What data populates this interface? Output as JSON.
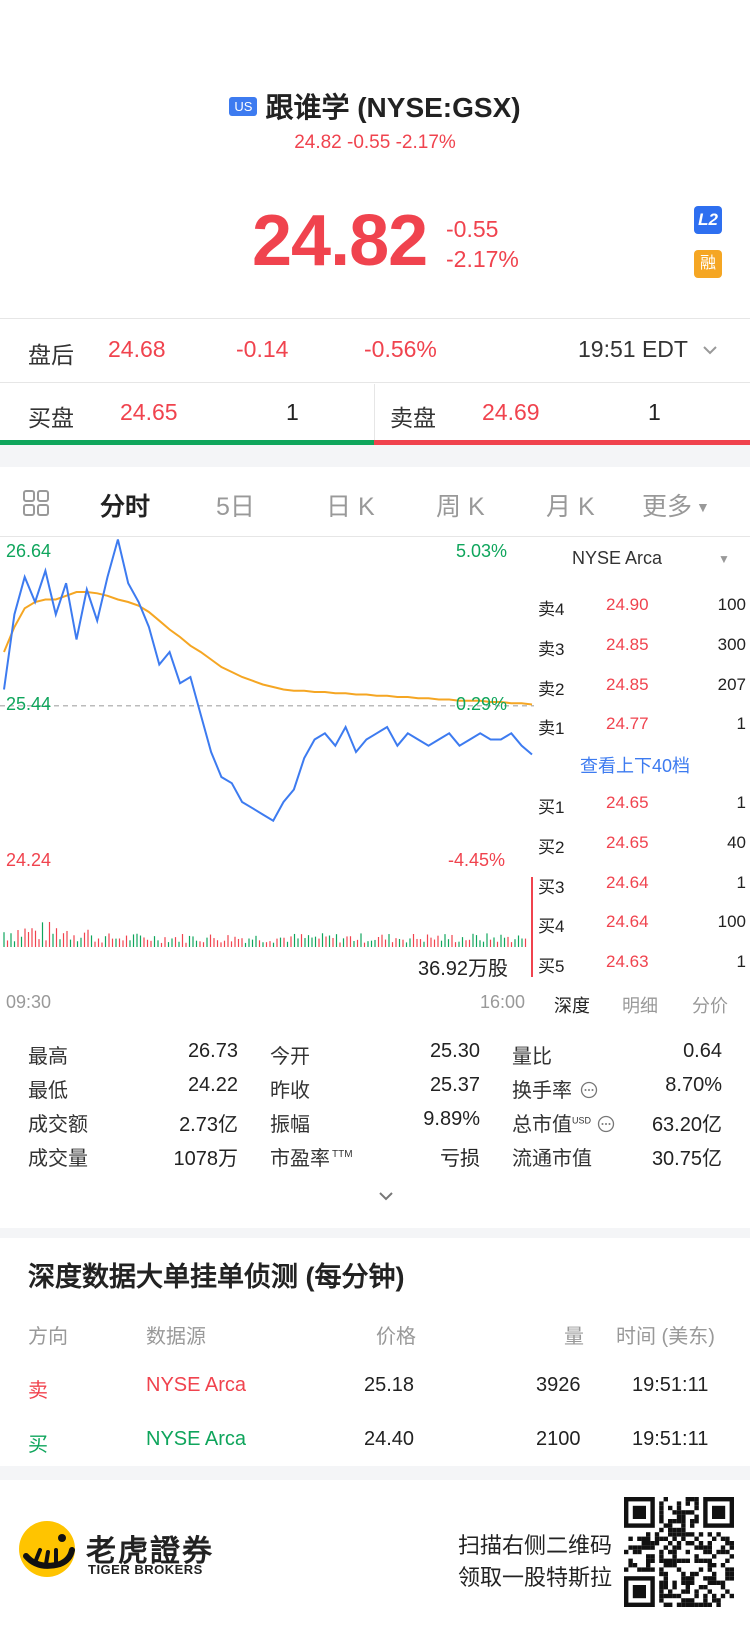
{
  "header": {
    "market_badge": "US",
    "title": "跟谁学 (NYSE:GSX)",
    "subtitle": "24.82 -0.55 -2.17%",
    "price": "24.82",
    "change": "-0.55",
    "change_pct": "-2.17%",
    "l2_badge": "L2",
    "margin_badge": "融"
  },
  "after_hours": {
    "label": "盘后",
    "price": "24.68",
    "change": "-0.14",
    "change_pct": "-0.56%",
    "time": "19:51 EDT"
  },
  "bid_ask": {
    "bid_label": "买盘",
    "bid_price": "24.65",
    "bid_qty": "1",
    "ask_label": "卖盘",
    "ask_price": "24.69",
    "ask_qty": "1"
  },
  "tabs": [
    "分时",
    "5日",
    "日 K",
    "周 K",
    "月 K",
    "更多"
  ],
  "chart": {
    "y_high": "26.64",
    "y_mid": "25.44",
    "y_low": "24.24",
    "pct_high": "5.03%",
    "pct_mid": "0.29%",
    "pct_low": "-4.45%",
    "volume_label": "36.92万股",
    "time_start": "09:30",
    "time_end": "16:00"
  },
  "chart_data": {
    "type": "line",
    "title": "",
    "xlabel": "",
    "ylabel": "",
    "ylim": [
      24.24,
      26.64
    ],
    "x_range": [
      "09:30",
      "16:00"
    ],
    "prev_close": 25.37,
    "series": [
      {
        "color": "#3d7bf0",
        "values": [
          25.5,
          26.1,
          26.4,
          26.2,
          26.45,
          26.1,
          26.35,
          25.9,
          26.3,
          26.05,
          26.4,
          26.7,
          26.35,
          26.2,
          26.0,
          25.7,
          25.8,
          25.55,
          25.6,
          25.3,
          25.0,
          24.8,
          24.75,
          24.6,
          24.55,
          24.5,
          24.45,
          24.6,
          24.7,
          24.95,
          25.1,
          25.15,
          25.05,
          25.2,
          25.0,
          25.1,
          25.15,
          25.2,
          25.05,
          25.15,
          25.1,
          25.05,
          25.1,
          25.15,
          25.05,
          25.1,
          25.15,
          25.1,
          25.1,
          25.15,
          25.05,
          24.98
        ]
      },
      {
        "color": "#f5a623",
        "values": [
          25.8,
          26.0,
          26.15,
          26.2,
          26.22,
          26.22,
          26.25,
          26.28,
          26.28,
          26.27,
          26.25,
          26.22,
          26.2,
          26.17,
          26.12,
          26.05,
          25.98,
          25.92,
          25.85,
          25.8,
          25.74,
          25.68,
          25.64,
          25.6,
          25.57,
          25.54,
          25.52,
          25.5,
          25.49,
          25.49,
          25.48,
          25.48,
          25.47,
          25.47,
          25.46,
          25.46,
          25.45,
          25.45,
          25.44,
          25.44,
          25.43,
          25.43,
          25.42,
          25.42,
          25.41,
          25.41,
          25.41,
          25.4,
          25.4,
          25.39,
          25.39,
          25.38
        ]
      }
    ]
  },
  "order_book": {
    "exchange": "NYSE Arca",
    "asks": [
      {
        "label": "卖4",
        "price": "24.90",
        "qty": "100"
      },
      {
        "label": "卖3",
        "price": "24.85",
        "qty": "300"
      },
      {
        "label": "卖2",
        "price": "24.85",
        "qty": "207"
      },
      {
        "label": "卖1",
        "price": "24.77",
        "qty": "1"
      }
    ],
    "more_link": "查看上下40档",
    "bids": [
      {
        "label": "买1",
        "price": "24.65",
        "qty": "1"
      },
      {
        "label": "买2",
        "price": "24.65",
        "qty": "40"
      },
      {
        "label": "买3",
        "price": "24.64",
        "qty": "1"
      },
      {
        "label": "买4",
        "price": "24.64",
        "qty": "100"
      },
      {
        "label": "买5",
        "price": "24.63",
        "qty": "1"
      }
    ],
    "tabs": [
      "深度",
      "明细",
      "分价"
    ]
  },
  "stats": {
    "high_label": "最高",
    "high": "26.73",
    "low_label": "最低",
    "low": "24.22",
    "turnover_label": "成交额",
    "turnover": "2.73亿",
    "volume_label": "成交量",
    "volume": "1078万",
    "open_label": "今开",
    "open": "25.30",
    "prev_close_label": "昨收",
    "prev_close": "25.37",
    "amplitude_label": "振幅",
    "amplitude": "9.89%",
    "pe_label": "市盈率",
    "pe_sup": "TTM",
    "pe": "亏损",
    "vol_ratio_label": "量比",
    "vol_ratio": "0.64",
    "turnover_rate_label": "换手率",
    "turnover_rate": "8.70%",
    "mkt_cap_label": "总市值",
    "mkt_cap_sup": "USD",
    "mkt_cap": "63.20亿",
    "float_cap_label": "流通市值",
    "float_cap": "30.75亿"
  },
  "large_orders": {
    "title": "深度数据大单挂单侦测 (每分钟)",
    "headers": [
      "方向",
      "数据源",
      "价格",
      "量",
      "时间 (美东)"
    ],
    "rows": [
      {
        "side": "卖",
        "source": "NYSE Arca",
        "price": "25.18",
        "qty": "3926",
        "time": "19:51:11",
        "color": "#f0434e"
      },
      {
        "side": "买",
        "source": "NYSE Arca",
        "price": "24.40",
        "qty": "2100",
        "time": "19:51:11",
        "color": "#0fa55c"
      }
    ]
  },
  "footer": {
    "brand_cn": "老虎證券",
    "brand_en": "TIGER BROKERS",
    "promo_line1": "扫描右侧二维码",
    "promo_line2": "领取一股特斯拉"
  },
  "colors": {
    "up_red": "#f0434e",
    "down_green": "#0fa55c",
    "link_blue": "#3d7bf0",
    "avg_orange": "#f5a623"
  }
}
